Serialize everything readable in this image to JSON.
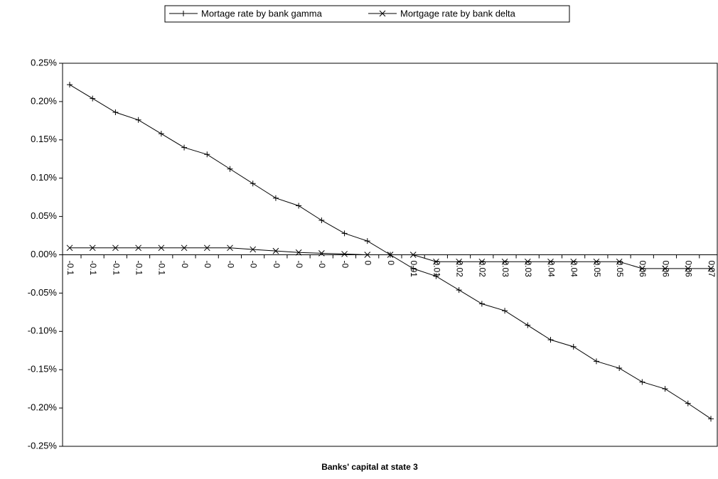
{
  "chart_data": {
    "type": "line",
    "x_label": "Banks' capital at state 3",
    "categories": [
      "-0.1",
      "-0.1",
      "-0.1",
      "-0.1",
      "-0.1",
      "-0",
      "-0",
      "-0",
      "-0",
      "-0",
      "-0",
      "-0",
      "-0",
      "0",
      "0",
      "0.01",
      "0.01",
      "0.02",
      "0.02",
      "0.03",
      "0.03",
      "0.04",
      "0.04",
      "0.05",
      "0.05",
      "0.06",
      "0.06",
      "0.06",
      "0.07"
    ],
    "series": [
      {
        "name": "Mortage rate by bank gamma",
        "color": "#000000",
        "marker": "plus",
        "values": [
          0.222,
          0.204,
          0.186,
          0.176,
          0.158,
          0.14,
          0.131,
          0.112,
          0.093,
          0.074,
          0.064,
          0.045,
          0.028,
          0.018,
          0,
          -0.018,
          -0.028,
          -0.046,
          -0.064,
          -0.073,
          -0.092,
          -0.111,
          -0.12,
          -0.139,
          -0.148,
          -0.166,
          -0.175,
          -0.194,
          -0.214
        ]
      },
      {
        "name": "Mortgage rate by bank delta",
        "color": "#000000",
        "marker": "cross",
        "values": [
          0.009,
          0.009,
          0.009,
          0.009,
          0.009,
          0.009,
          0.009,
          0.009,
          0.007,
          0.005,
          0.003,
          0.002,
          0.001,
          0,
          0,
          0,
          -0.009,
          -0.009,
          -0.009,
          -0.009,
          -0.009,
          -0.009,
          -0.009,
          -0.009,
          -0.009,
          -0.018,
          -0.018,
          -0.018,
          -0.018
        ]
      }
    ],
    "ylim": [
      -0.25,
      0.25
    ],
    "yticks": [
      {
        "value": -0.25,
        "label": "-0.25%"
      },
      {
        "value": -0.2,
        "label": "-0.20%"
      },
      {
        "value": -0.15,
        "label": "-0.15%"
      },
      {
        "value": -0.1,
        "label": "-0.10%"
      },
      {
        "value": -0.05,
        "label": "-0.05%"
      },
      {
        "value": 0,
        "label": "0.00%"
      },
      {
        "value": 0.05,
        "label": "0.05%"
      },
      {
        "value": 0.1,
        "label": "0.10%"
      },
      {
        "value": 0.15,
        "label": "0.15%"
      },
      {
        "value": 0.2,
        "label": "0.20%"
      },
      {
        "value": 0.25,
        "label": "0.25%"
      }
    ],
    "grid": false,
    "legend": "top"
  }
}
